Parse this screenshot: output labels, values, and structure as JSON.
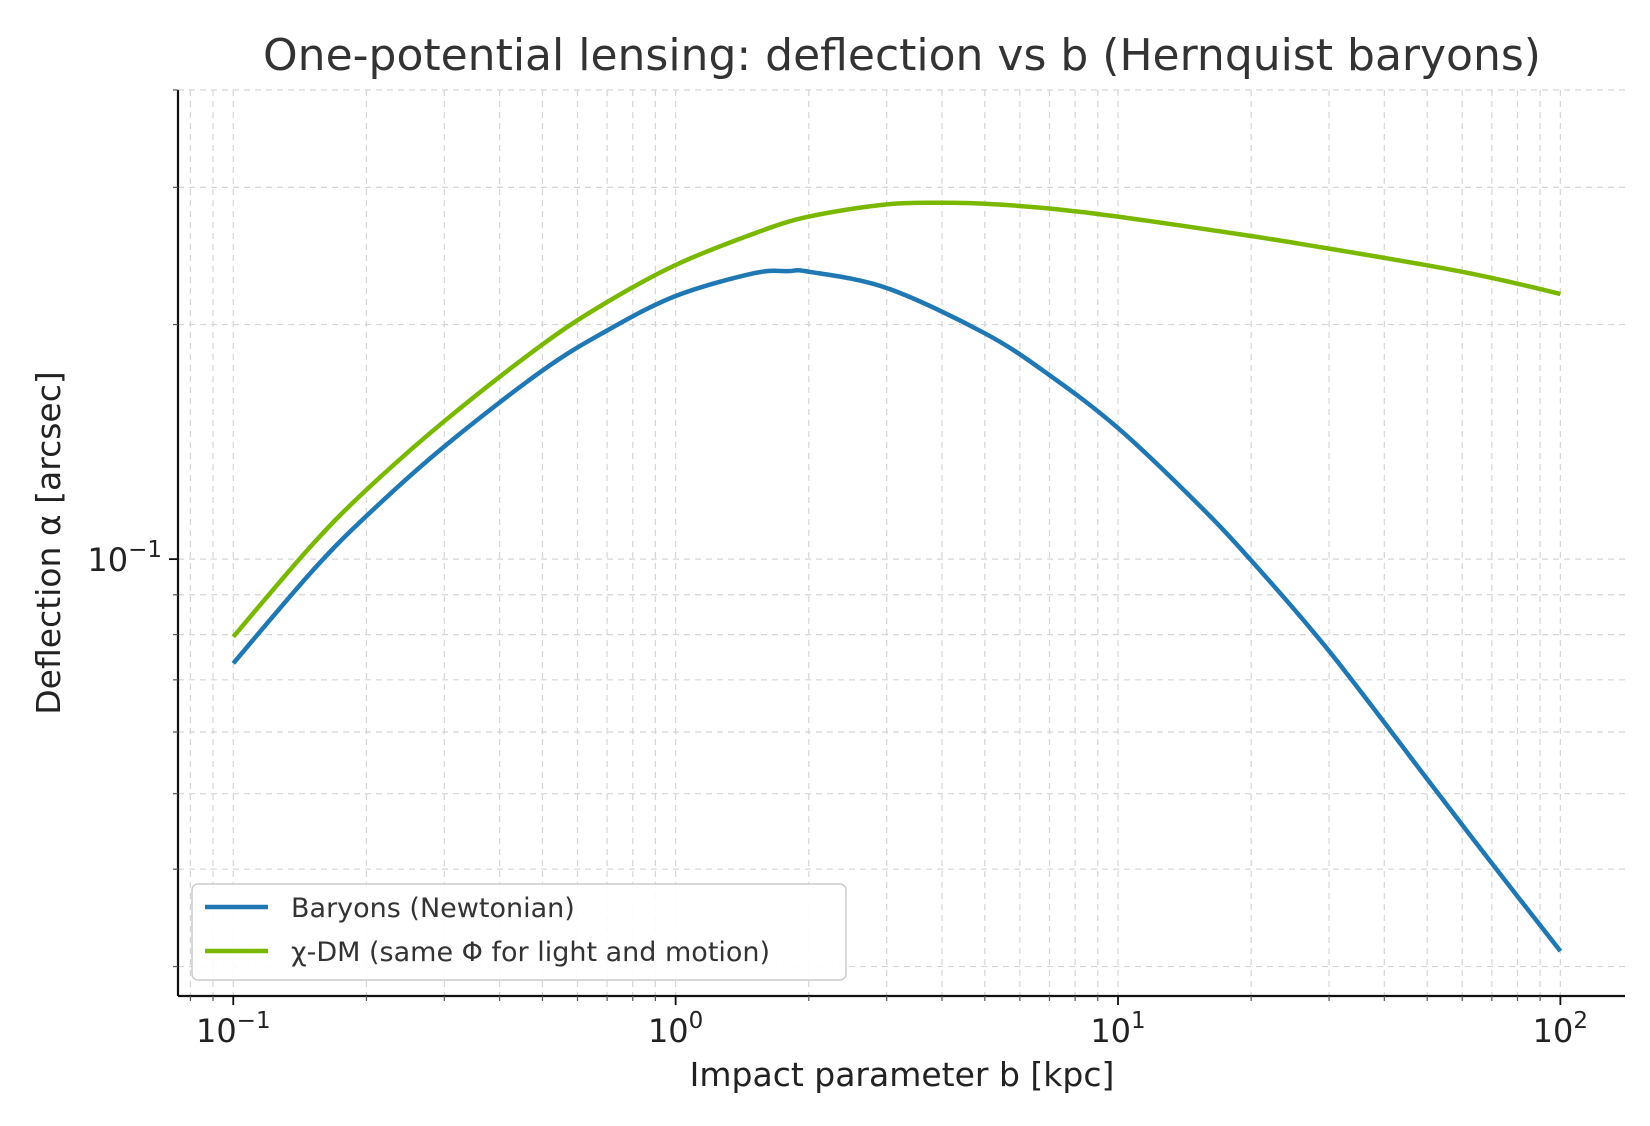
{
  "chart_data": {
    "type": "line",
    "title": "One-potential lensing: deflection vs b (Hernquist baryons)",
    "xlabel": "Impact parameter b [kpc]",
    "ylabel": "Deflection α [arcsec]",
    "xscale": "log",
    "yscale": "log",
    "xlim": [
      0.075,
      140
    ],
    "ylim": [
      0.0275,
      0.4
    ],
    "grid": "on",
    "legend_position": "lower-left",
    "x_ticks": [
      {
        "base": "10",
        "exp": "−1",
        "value": 0.1
      },
      {
        "base": "10",
        "exp": "0",
        "value": 1
      },
      {
        "base": "10",
        "exp": "1",
        "value": 10
      },
      {
        "base": "10",
        "exp": "2",
        "value": 100
      }
    ],
    "y_ticks": [
      {
        "base": "10",
        "exp": "−1",
        "value": 0.1
      }
    ],
    "series": [
      {
        "name": "Baryons (Newtonian)",
        "color": "#1f77b4",
        "x": [
          0.1,
          0.15,
          0.2,
          0.3,
          0.5,
          0.7,
          1.0,
          1.5,
          1.8,
          2.0,
          3.0,
          5.0,
          7.0,
          10,
          15,
          20,
          30,
          50,
          70,
          100
        ],
        "y": [
          0.0735,
          0.0962,
          0.1136,
          0.1395,
          0.1746,
          0.1965,
          0.2176,
          0.2327,
          0.2342,
          0.2338,
          0.2228,
          0.1949,
          0.1722,
          0.1473,
          0.1184,
          0.0996,
          0.0762,
          0.0522,
          0.0407,
          0.0314
        ]
      },
      {
        "name": "χ-DM (same Φ for light and motion)",
        "color": "#7ab800",
        "x": [
          0.1,
          0.15,
          0.2,
          0.3,
          0.5,
          0.7,
          1.0,
          1.5,
          2.0,
          3.0,
          4.0,
          5.0,
          7.0,
          10,
          20,
          30,
          50,
          70,
          100
        ],
        "y": [
          0.0795,
          0.104,
          0.1227,
          0.1503,
          0.1886,
          0.2137,
          0.2385,
          0.2616,
          0.2752,
          0.2853,
          0.2866,
          0.2858,
          0.2818,
          0.2752,
          0.2598,
          0.2503,
          0.2383,
          0.2296,
          0.219
        ]
      }
    ]
  }
}
